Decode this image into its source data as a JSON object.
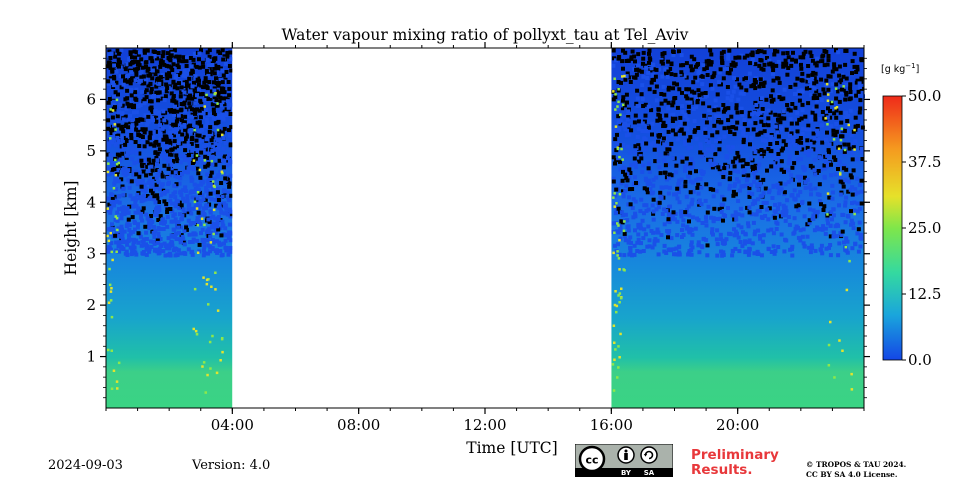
{
  "chart_data": {
    "type": "heatmap",
    "title": "Water vapour mixing ratio of pollyxt_tau at Tel_Aviv",
    "xlabel": "Time [UTC]",
    "ylabel": "Height [km]",
    "xlim": [
      0,
      24
    ],
    "ylim": [
      0,
      7
    ],
    "x_ticks": [
      {
        "value": 4,
        "label": "04:00"
      },
      {
        "value": 8,
        "label": "08:00"
      },
      {
        "value": 12,
        "label": "12:00"
      },
      {
        "value": 16,
        "label": "16:00"
      },
      {
        "value": 20,
        "label": "20:00"
      }
    ],
    "y_ticks": [
      {
        "value": 1,
        "label": "1"
      },
      {
        "value": 2,
        "label": "2"
      },
      {
        "value": 3,
        "label": "3"
      },
      {
        "value": 4,
        "label": "4"
      },
      {
        "value": 5,
        "label": "5"
      },
      {
        "value": 6,
        "label": "6"
      }
    ],
    "data_segments": [
      {
        "start": 0,
        "end": 4
      },
      {
        "start": 16,
        "end": 24
      }
    ],
    "no_data_intervals": [
      {
        "start": 4,
        "end": 16
      }
    ],
    "colorbar": {
      "unit": "[g kg",
      "unit_exp": "−1",
      "unit_close": "]",
      "min": 0.0,
      "max": 50.0,
      "ticks": [
        {
          "value": 0.0,
          "label": "0.0"
        },
        {
          "value": 12.5,
          "label": "12.5"
        },
        {
          "value": 25.0,
          "label": "25.0"
        },
        {
          "value": 37.5,
          "label": "37.5"
        },
        {
          "value": 50.0,
          "label": "50.0"
        }
      ],
      "colors": [
        "#1446e6",
        "#1aa5dc",
        "#34d9a0",
        "#7fe64a",
        "#e6e12a",
        "#f59a1f",
        "#ef2a1a"
      ]
    },
    "grid": false
  },
  "footer": {
    "date": "2024-09-03",
    "version": "Version: 4.0",
    "preliminary_line1": "Preliminary",
    "preliminary_line2": "Results.",
    "copyright_line1": "© TROPOS & TAU 2024.",
    "copyright_line2": "CC BY SA 4.0 License."
  },
  "license_badge": {
    "cc": "cc",
    "by": "BY",
    "sa": "SA"
  }
}
